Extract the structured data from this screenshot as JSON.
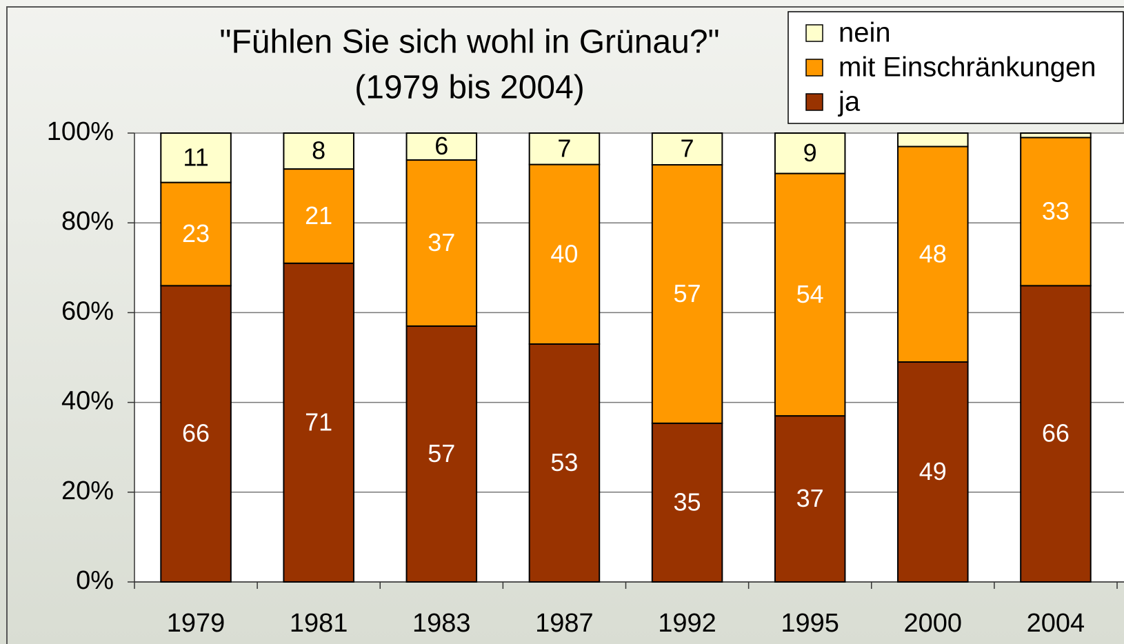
{
  "chart_data": {
    "type": "bar",
    "stacking": "percent",
    "title": "\"Fühlen Sie sich wohl in Grünau?\"",
    "subtitle": "(1979 bis 2004)",
    "categories": [
      "1979",
      "1981",
      "1983",
      "1987",
      "1992",
      "1995",
      "2000",
      "2004"
    ],
    "series": [
      {
        "name": "ja",
        "color": "#993300",
        "values": [
          66,
          71,
          57,
          53,
          35,
          37,
          49,
          66
        ]
      },
      {
        "name": "mit Einschränkungen",
        "color": "#FF9900",
        "values": [
          23,
          21,
          37,
          40,
          57,
          54,
          48,
          33
        ]
      },
      {
        "name": "nein",
        "color": "#FFFFCC",
        "values": [
          11,
          8,
          6,
          7,
          7,
          9,
          3,
          1
        ],
        "value_labels": [
          "11",
          "8",
          "6",
          "7",
          "7",
          "9",
          null,
          null
        ]
      }
    ],
    "ylim": [
      0,
      100
    ],
    "yticks": [
      {
        "value": 0,
        "label": "0%"
      },
      {
        "value": 20,
        "label": "20%"
      },
      {
        "value": 40,
        "label": "40%"
      },
      {
        "value": 60,
        "label": "60%"
      },
      {
        "value": 80,
        "label": "80%"
      },
      {
        "value": 100,
        "label": "100%"
      }
    ],
    "grid": true,
    "legend": "top-right"
  }
}
